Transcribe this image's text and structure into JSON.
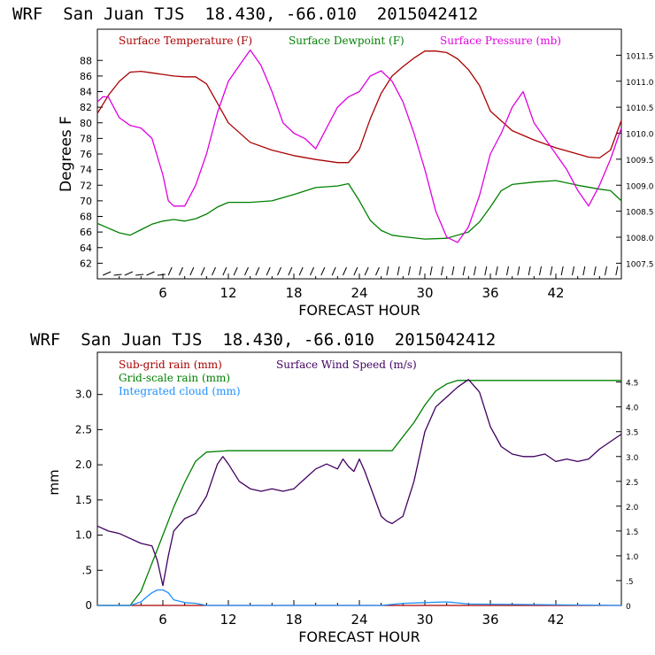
{
  "chart_data": [
    {
      "type": "line",
      "title": "WRF  San Juan TJS  18.430, -66.010  2015042412",
      "xlabel": "FORECAST HOUR",
      "ylabel": "Degrees F",
      "xlim": [
        0,
        48
      ],
      "xticks": [
        6,
        12,
        18,
        24,
        30,
        36,
        42
      ],
      "ylim_left": [
        60,
        92
      ],
      "yticks_left": [
        62,
        64,
        66,
        68,
        70,
        72,
        74,
        76,
        78,
        80,
        82,
        84,
        86,
        88
      ],
      "ylim_right": [
        1007.2,
        1012.0
      ],
      "yticks_right": [
        "1007.5",
        "1008.0",
        "1008.5",
        "1009.0",
        "1009.5",
        "1010.0",
        "1010.5",
        "1011.0",
        "1011.5"
      ],
      "legend_position": "top",
      "series": [
        {
          "name": "Surface Temperature (F)",
          "color": "#aa0000",
          "axis": "left",
          "x": [
            0,
            1,
            2,
            3,
            4,
            5,
            6,
            7,
            8,
            9,
            10,
            11,
            12,
            14,
            16,
            18,
            20,
            22,
            23,
            24,
            25,
            26,
            27,
            28,
            29,
            30,
            31,
            32,
            33,
            34,
            35,
            36,
            38,
            40,
            42,
            44,
            45,
            46,
            47,
            48
          ],
          "values": [
            81.2,
            83.5,
            85.3,
            86.5,
            86.6,
            86.4,
            86.2,
            86.0,
            85.9,
            85.9,
            85.0,
            82.5,
            80.0,
            77.5,
            76.5,
            75.8,
            75.3,
            74.9,
            74.9,
            76.6,
            80.5,
            83.8,
            86.0,
            87.2,
            88.3,
            89.2,
            89.2,
            89.0,
            88.2,
            86.8,
            84.8,
            81.5,
            79.0,
            77.8,
            76.8,
            76.0,
            75.6,
            75.5,
            76.5,
            80.3
          ]
        },
        {
          "name": "Surface Dewpoint (F)",
          "color": "#008000",
          "axis": "left",
          "x": [
            0,
            1,
            2,
            3,
            4,
            5,
            6,
            7,
            8,
            9,
            10,
            11,
            12,
            14,
            16,
            18,
            20,
            22,
            23,
            24,
            25,
            26,
            27,
            28,
            30,
            32,
            34,
            35,
            36,
            37,
            38,
            40,
            42,
            44,
            46,
            47,
            48
          ],
          "values": [
            67.1,
            66.5,
            65.9,
            65.6,
            66.3,
            67.0,
            67.4,
            67.6,
            67.4,
            67.7,
            68.3,
            69.2,
            69.8,
            69.8,
            70.0,
            70.8,
            71.7,
            71.9,
            72.2,
            70.0,
            67.5,
            66.2,
            65.6,
            65.4,
            65.1,
            65.2,
            66.0,
            67.3,
            69.2,
            71.3,
            72.1,
            72.4,
            72.6,
            72.0,
            71.5,
            71.3,
            70.0
          ]
        },
        {
          "name": "Surface Pressure (mb)",
          "color": "#e000e0",
          "axis": "right",
          "x": [
            0,
            0.5,
            1,
            2,
            3,
            4,
            5,
            6,
            6.5,
            7,
            8,
            9,
            10,
            11,
            12,
            13,
            14,
            15,
            16,
            17,
            18,
            19,
            20,
            21,
            22,
            23,
            24,
            25,
            26,
            27,
            28,
            29,
            30,
            31,
            32,
            33,
            34,
            35,
            36,
            37,
            38,
            39,
            40,
            41,
            42,
            43,
            44,
            45,
            46,
            47,
            48
          ],
          "values": [
            1010.6,
            1010.7,
            1010.7,
            1010.3,
            1010.15,
            1010.1,
            1009.9,
            1009.2,
            1008.7,
            1008.6,
            1008.6,
            1009.0,
            1009.6,
            1010.4,
            1011.0,
            1011.3,
            1011.6,
            1011.3,
            1010.8,
            1010.2,
            1010.0,
            1009.9,
            1009.7,
            1010.1,
            1010.5,
            1010.7,
            1010.8,
            1011.1,
            1011.2,
            1011.0,
            1010.6,
            1010.0,
            1009.3,
            1008.5,
            1008.0,
            1007.9,
            1008.2,
            1008.8,
            1009.6,
            1010.0,
            1010.5,
            1010.8,
            1010.2,
            1009.9,
            1009.6,
            1009.3,
            1008.9,
            1008.6,
            1009.0,
            1009.5,
            1010.1
          ]
        }
      ]
    },
    {
      "type": "line",
      "title": "WRF  San Juan TJS  18.430, -66.010  2015042412",
      "xlabel": "FORECAST HOUR",
      "ylabel": "mm",
      "xlim": [
        0,
        48
      ],
      "xticks": [
        6,
        12,
        18,
        24,
        30,
        36,
        42
      ],
      "ylim_left": [
        0,
        3.6
      ],
      "yticks_left": [
        "0",
        ".5",
        "1.0",
        "1.5",
        "2.0",
        "2.5",
        "3.0"
      ],
      "ylim_right": [
        0,
        5.1
      ],
      "yticks_right": [
        "0",
        ".5",
        "1.0",
        "1.5",
        "2.0",
        "2.5",
        "3.0",
        "3.5",
        "4.0",
        "4.5"
      ],
      "legend_position": "top-left",
      "series": [
        {
          "name": "Sub-grid rain (mm)",
          "color": "#aa0000",
          "axis": "left",
          "x": [
            0,
            48
          ],
          "values": [
            0,
            0
          ]
        },
        {
          "name": "Grid-scale rain (mm)",
          "color": "#008000",
          "axis": "left",
          "x": [
            0,
            3,
            4,
            5,
            6,
            7,
            8,
            9,
            10,
            12,
            20,
            27,
            28,
            29,
            30,
            31,
            32,
            33,
            34,
            40,
            48
          ],
          "values": [
            0,
            0,
            0.2,
            0.6,
            1.0,
            1.4,
            1.75,
            2.05,
            2.18,
            2.2,
            2.2,
            2.2,
            2.4,
            2.6,
            2.85,
            3.05,
            3.15,
            3.2,
            3.2,
            3.2,
            3.2
          ]
        },
        {
          "name": "Integrated cloud (mm)",
          "color": "#1e90ff",
          "axis": "left",
          "x": [
            0,
            3,
            4,
            4.5,
            5,
            5.5,
            6,
            6.5,
            7,
            8,
            9,
            10,
            26,
            28,
            30,
            32,
            34,
            48
          ],
          "values": [
            0,
            0,
            0.05,
            0.12,
            0.18,
            0.22,
            0.22,
            0.18,
            0.08,
            0.04,
            0.03,
            0,
            0,
            0.03,
            0.04,
            0.05,
            0.02,
            0
          ]
        },
        {
          "name": "Surface Wind Speed (m/s)",
          "color": "#400060",
          "axis": "right",
          "x": [
            0,
            1,
            2,
            3,
            4,
            5,
            5.5,
            6,
            6.5,
            7,
            8,
            9,
            10,
            11,
            11.5,
            12,
            13,
            14,
            15,
            16,
            17,
            18,
            19,
            20,
            21,
            22,
            22.5,
            23,
            23.5,
            24,
            24.5,
            25,
            26,
            26.5,
            27,
            28,
            29,
            30,
            31,
            32,
            33,
            34,
            35,
            36,
            37,
            38,
            39,
            40,
            41,
            42,
            43,
            44,
            45,
            46,
            47,
            48
          ],
          "values": [
            1.6,
            1.5,
            1.45,
            1.35,
            1.25,
            1.2,
            0.9,
            0.4,
            1.0,
            1.5,
            1.75,
            1.85,
            2.2,
            2.85,
            3.0,
            2.85,
            2.5,
            2.35,
            2.3,
            2.35,
            2.3,
            2.35,
            2.55,
            2.75,
            2.85,
            2.75,
            2.95,
            2.8,
            2.7,
            2.95,
            2.7,
            2.4,
            1.8,
            1.7,
            1.65,
            1.8,
            2.5,
            3.5,
            4.0,
            4.2,
            4.4,
            4.55,
            4.3,
            3.6,
            3.2,
            3.05,
            3.0,
            3.0,
            3.05,
            2.9,
            2.95,
            2.9,
            2.95,
            3.15,
            3.3,
            3.45
          ]
        }
      ]
    }
  ]
}
